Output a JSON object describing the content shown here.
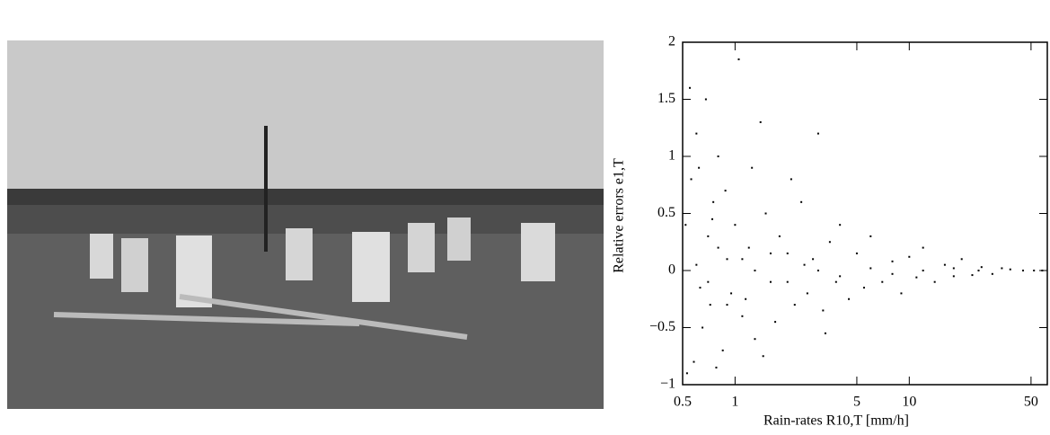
{
  "chart_data": {
    "type": "scatter",
    "xlabel": "Rain-rates R10,T [mm/h]",
    "ylabel": "Relative errors e1,T",
    "xscale": "log",
    "color": "#000000",
    "xlim": [
      0.5,
      62
    ],
    "xticks": [
      0.5,
      1,
      5,
      10,
      50
    ],
    "ylim": [
      -1,
      2
    ],
    "yticks": [
      {
        "value": -1,
        "label": "−1"
      },
      {
        "value": -0.5,
        "label": "−0.5"
      },
      0,
      0.5,
      1,
      1.5,
      2
    ],
    "x": [
      0.55,
      0.6,
      0.62,
      0.58,
      0.65,
      0.7,
      0.72,
      0.75,
      0.8,
      0.85,
      0.9,
      0.95,
      1.0,
      1.05,
      1.1,
      1.2,
      1.3,
      1.4,
      1.5,
      1.6,
      1.7,
      1.8,
      2.0,
      2.2,
      2.4,
      2.6,
      2.8,
      3.0,
      3.2,
      3.5,
      3.8,
      4.0,
      4.5,
      5,
      5.5,
      6,
      7,
      8,
      9,
      10,
      11,
      12,
      14,
      16,
      18,
      20,
      23,
      26,
      30,
      34,
      38,
      45,
      52,
      58,
      0.6,
      0.7,
      0.8,
      0.9,
      1.1,
      1.3,
      1.6,
      2.0,
      2.5,
      3,
      4,
      6,
      8,
      12,
      18,
      25,
      0.52,
      0.53,
      0.56,
      0.68,
      0.78,
      0.88,
      1.25,
      1.45,
      2.1,
      3.3,
      0.63,
      0.74,
      1.15
    ],
    "values": [
      1.6,
      1.2,
      0.9,
      -0.8,
      -0.5,
      0.3,
      -0.3,
      0.6,
      1.0,
      -0.7,
      0.1,
      -0.2,
      0.4,
      1.85,
      -0.4,
      0.2,
      -0.6,
      1.3,
      0.5,
      -0.1,
      -0.45,
      0.3,
      0.15,
      -0.3,
      0.6,
      -0.2,
      0.1,
      1.2,
      -0.35,
      0.25,
      -0.1,
      0.4,
      -0.25,
      0.15,
      -0.15,
      0.3,
      -0.1,
      0.08,
      -0.2,
      0.12,
      -0.06,
      0.2,
      -0.1,
      0.05,
      -0.05,
      0.1,
      -0.04,
      0.03,
      -0.03,
      0.02,
      0.01,
      0,
      0,
      0,
      0.05,
      -0.1,
      0.2,
      -0.3,
      0.1,
      0.0,
      0.15,
      -0.1,
      0.05,
      0.0,
      -0.05,
      0.02,
      -0.03,
      0.0,
      0.02,
      0.0,
      0.4,
      -0.9,
      0.8,
      1.5,
      -0.85,
      0.7,
      0.9,
      -0.75,
      0.8,
      -0.55,
      -0.15,
      0.45,
      -0.25
    ]
  }
}
